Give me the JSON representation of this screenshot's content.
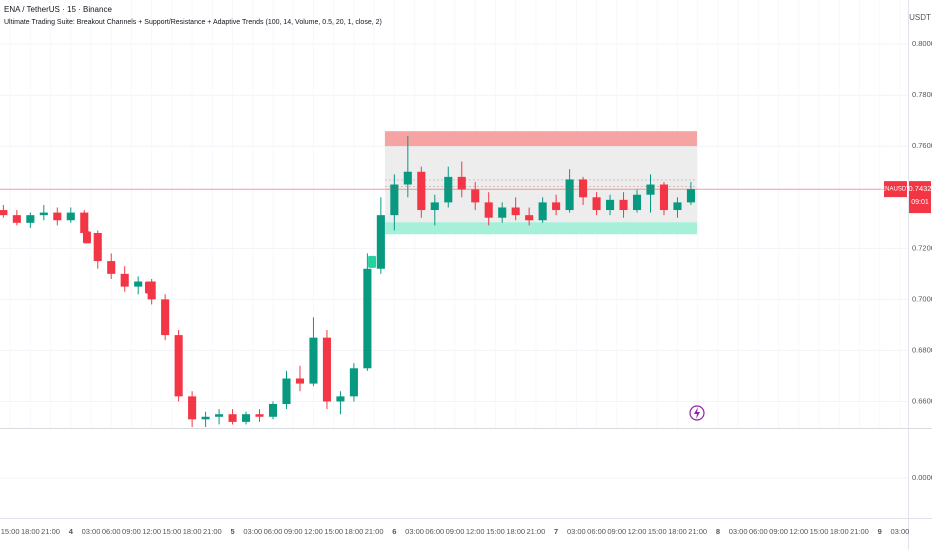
{
  "header": {
    "symbol": "ENA / TetherUS · 15 · Binance",
    "indicator": "Ultimate Trading Suite: Breakout Channels + Support/Resistance + Adaptive Trends (100, 14, Volume, 0.5, 20, 1, close, 2)"
  },
  "chart_data": {
    "type": "candlestick",
    "currency": "USDT",
    "x": [
      -1,
      1,
      3,
      5,
      7,
      9,
      11,
      13,
      15,
      17,
      19,
      21,
      23,
      25,
      27,
      29,
      31,
      33,
      35,
      37,
      39,
      41,
      43,
      45,
      47,
      49,
      51,
      53,
      55,
      57,
      59,
      61,
      63,
      65,
      67,
      69,
      71,
      73,
      75,
      77,
      79,
      81,
      83,
      85,
      87,
      89,
      91,
      93,
      95,
      97,
      99,
      101
    ],
    "open": [
      0.735,
      0.733,
      0.73,
      0.733,
      0.734,
      0.731,
      0.734,
      0.726,
      0.715,
      0.71,
      0.705,
      0.707,
      0.7,
      0.686,
      0.662,
      0.653,
      0.654,
      0.655,
      0.652,
      0.655,
      0.654,
      0.659,
      0.669,
      0.667,
      0.685,
      0.66,
      0.662,
      0.673,
      0.712,
      0.733,
      0.745,
      0.75,
      0.735,
      0.738,
      0.748,
      0.743,
      0.738,
      0.732,
      0.736,
      0.733,
      0.731,
      0.738,
      0.735,
      0.747,
      0.74,
      0.735,
      0.739,
      0.735,
      0.741,
      0.745,
      0.735,
      0.738
    ],
    "high": [
      0.737,
      0.735,
      0.734,
      0.737,
      0.736,
      0.736,
      0.735,
      0.727,
      0.718,
      0.713,
      0.709,
      0.708,
      0.702,
      0.688,
      0.664,
      0.656,
      0.657,
      0.657,
      0.656,
      0.657,
      0.66,
      0.672,
      0.674,
      0.693,
      0.688,
      0.664,
      0.675,
      0.718,
      0.74,
      0.749,
      0.764,
      0.752,
      0.741,
      0.752,
      0.754,
      0.746,
      0.742,
      0.738,
      0.74,
      0.736,
      0.74,
      0.741,
      0.751,
      0.748,
      0.742,
      0.741,
      0.742,
      0.743,
      0.749,
      0.746,
      0.74,
      0.746
    ],
    "low": [
      0.732,
      0.729,
      0.728,
      0.731,
      0.729,
      0.73,
      0.724,
      0.712,
      0.708,
      0.703,
      0.702,
      0.698,
      0.684,
      0.66,
      0.65,
      0.65,
      0.651,
      0.651,
      0.651,
      0.652,
      0.653,
      0.657,
      0.664,
      0.666,
      0.657,
      0.655,
      0.66,
      0.672,
      0.71,
      0.727,
      0.74,
      0.732,
      0.729,
      0.736,
      0.74,
      0.735,
      0.729,
      0.73,
      0.731,
      0.729,
      0.73,
      0.733,
      0.734,
      0.737,
      0.733,
      0.733,
      0.732,
      0.734,
      0.734,
      0.733,
      0.732,
      0.737
    ],
    "close": [
      0.733,
      0.73,
      0.733,
      0.734,
      0.731,
      0.734,
      0.726,
      0.715,
      0.71,
      0.705,
      0.707,
      0.7,
      0.686,
      0.662,
      0.653,
      0.654,
      0.655,
      0.652,
      0.655,
      0.654,
      0.659,
      0.669,
      0.667,
      0.685,
      0.66,
      0.662,
      0.673,
      0.712,
      0.733,
      0.745,
      0.75,
      0.735,
      0.738,
      0.748,
      0.743,
      0.738,
      0.732,
      0.736,
      0.733,
      0.731,
      0.738,
      0.735,
      0.747,
      0.74,
      0.735,
      0.739,
      0.735,
      0.741,
      0.745,
      0.735,
      0.738,
      0.7432
    ],
    "up_color": "#089981",
    "down_color": "#f23645",
    "xlim": [
      -1.5,
      133.2
    ],
    "xticks": [
      {
        "value": 0,
        "label": "15:00"
      },
      {
        "value": 3,
        "label": "18:00"
      },
      {
        "value": 6,
        "label": "21:00"
      },
      {
        "value": 9,
        "label": "4"
      },
      {
        "value": 12,
        "label": "03:00"
      },
      {
        "value": 15,
        "label": "06:00"
      },
      {
        "value": 18,
        "label": "09:00"
      },
      {
        "value": 21,
        "label": "12:00"
      },
      {
        "value": 24,
        "label": "15:00"
      },
      {
        "value": 27,
        "label": "18:00"
      },
      {
        "value": 30,
        "label": "21:00"
      },
      {
        "value": 33,
        "label": "5"
      },
      {
        "value": 36,
        "label": "03:00"
      },
      {
        "value": 39,
        "label": "06:00"
      },
      {
        "value": 42,
        "label": "09:00"
      },
      {
        "value": 45,
        "label": "12:00"
      },
      {
        "value": 48,
        "label": "15:00"
      },
      {
        "value": 51,
        "label": "18:00"
      },
      {
        "value": 54,
        "label": "21:00"
      },
      {
        "value": 57,
        "label": "6"
      },
      {
        "value": 60,
        "label": "03:00"
      },
      {
        "value": 63,
        "label": "06:00"
      },
      {
        "value": 66,
        "label": "09:00"
      },
      {
        "value": 69,
        "label": "12:00"
      },
      {
        "value": 72,
        "label": "15:00"
      },
      {
        "value": 75,
        "label": "18:00"
      },
      {
        "value": 78,
        "label": "21:00"
      },
      {
        "value": 81,
        "label": "7"
      },
      {
        "value": 84,
        "label": "03:00"
      },
      {
        "value": 87,
        "label": "06:00"
      },
      {
        "value": 90,
        "label": "09:00"
      },
      {
        "value": 93,
        "label": "12:00"
      },
      {
        "value": 96,
        "label": "15:00"
      },
      {
        "value": 99,
        "label": "18:00"
      },
      {
        "value": 102,
        "label": "21:00"
      },
      {
        "value": 105,
        "label": "8"
      },
      {
        "value": 108,
        "label": "03:00"
      },
      {
        "value": 111,
        "label": "06:00"
      },
      {
        "value": 114,
        "label": "09:00"
      },
      {
        "value": 117,
        "label": "12:00"
      },
      {
        "value": 120,
        "label": "15:00"
      },
      {
        "value": 123,
        "label": "18:00"
      },
      {
        "value": 126,
        "label": "21:00"
      },
      {
        "value": 129,
        "label": "9"
      },
      {
        "value": 132,
        "label": "03:00"
      }
    ],
    "ylim": [
      0.6496,
      0.8173
    ],
    "yticks": [
      {
        "value": 0.8,
        "label": "0.8000"
      },
      {
        "value": 0.78,
        "label": "0.7800"
      },
      {
        "value": 0.76,
        "label": "0.7600"
      },
      {
        "value": 0.72,
        "label": "0.7200"
      },
      {
        "value": 0.7,
        "label": "0.7000"
      },
      {
        "value": 0.68,
        "label": "0.6800"
      },
      {
        "value": 0.66,
        "label": "0.6600"
      }
    ],
    "grid": true,
    "last_price": 0.7432,
    "last_price_symbol": "ENAUSDT",
    "countdown": "09:01",
    "zone_start": 55.6,
    "zone_end": 101.9,
    "zones": [
      {
        "low": 0.76,
        "high": 0.7659,
        "color": "#f5a3a3"
      },
      {
        "low": 0.7302,
        "high": 0.76,
        "color": "#ededed"
      },
      {
        "low": 0.7255,
        "high": 0.7302,
        "color": "#a6f0da"
      }
    ],
    "levels": [
      0.7468,
      0.7443
    ],
    "signals": [
      {
        "x": 11.4,
        "price": 0.7231,
        "color": "#f23645"
      },
      {
        "x": 20.6,
        "price": 0.7035,
        "color": "#f23645"
      },
      {
        "x": 53.7,
        "price": 0.7135,
        "color": "#22d3a0"
      }
    ],
    "lower_pane": {
      "yticks": [
        {
          "value": 0,
          "label": "0.0000"
        }
      ]
    }
  }
}
